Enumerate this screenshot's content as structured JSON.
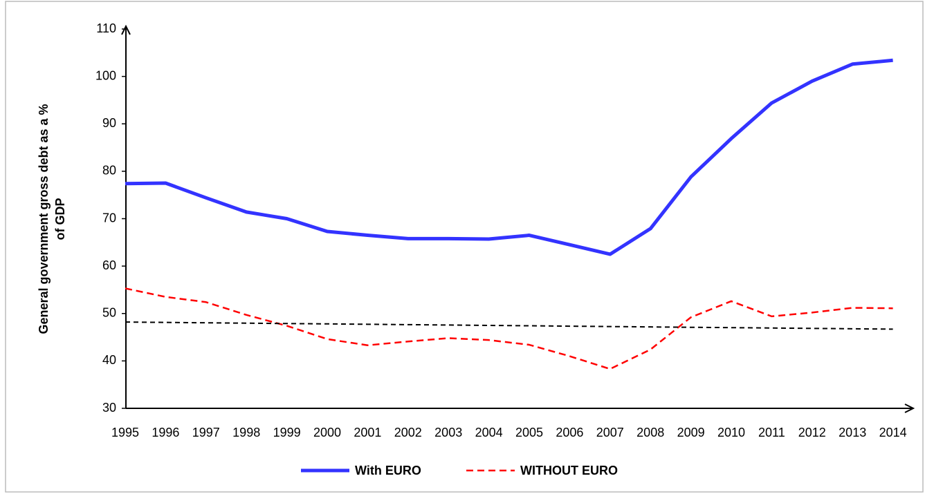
{
  "chart_data": {
    "type": "line",
    "y_label": [
      "General government gross debt  as a %",
      "of GDP"
    ],
    "categories": [
      "1995",
      "1996",
      "1997",
      "1998",
      "1999",
      "2000",
      "2001",
      "2002",
      "2003",
      "2004",
      "2005",
      "2006",
      "2007",
      "2008",
      "2009",
      "2010",
      "2011",
      "2012",
      "2013",
      "2014"
    ],
    "series": [
      {
        "name": "With EURO",
        "color": "#3333ff",
        "width": 5,
        "dash": "solid",
        "values": [
          77.4,
          77.5,
          74.4,
          71.4,
          70.0,
          67.3,
          66.5,
          65.8,
          65.8,
          65.7,
          66.5,
          64.5,
          62.5,
          67.9,
          78.8,
          86.9,
          94.4,
          99.0,
          102.6,
          103.4
        ]
      },
      {
        "name": "WITHOUT  EURO",
        "color": "#ff0000",
        "width": 2.5,
        "dash": "dashed",
        "values": [
          55.3,
          53.5,
          52.4,
          49.7,
          47.4,
          44.6,
          43.3,
          44.1,
          44.8,
          44.4,
          43.4,
          41.0,
          38.3,
          42.4,
          49.2,
          52.6,
          49.4,
          50.2,
          51.2,
          51.1
        ]
      },
      {
        "color": "#000000",
        "width": 2,
        "dash": "dashed",
        "values": [
          48.2,
          48.12,
          48.04,
          47.96,
          47.88,
          47.81,
          47.73,
          47.65,
          47.57,
          47.49,
          47.41,
          47.33,
          47.25,
          47.17,
          47.09,
          47.02,
          46.94,
          46.86,
          46.78,
          46.7
        ]
      }
    ],
    "ylim": [
      30,
      110
    ],
    "yticks": [
      30,
      40,
      50,
      60,
      70,
      80,
      90,
      100,
      110
    ],
    "grid": false,
    "legend": "bottom"
  }
}
